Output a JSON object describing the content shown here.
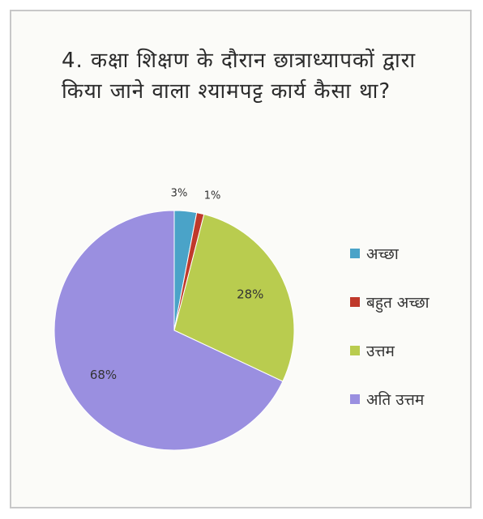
{
  "chart_data": {
    "type": "pie",
    "title": "4. कक्षा शिक्षण के दौरान छात्राध्यापकों द्वारा किया जाने वाला श्यामपट्ट कार्य कैसा था?",
    "slices": [
      {
        "label": "अच्छा",
        "value": 3,
        "percent_label": "3%",
        "color": "#4aa3c8"
      },
      {
        "label": "बहुत अच्छा",
        "value": 1,
        "percent_label": "1%",
        "color": "#c0392b"
      },
      {
        "label": "उत्तम",
        "value": 28,
        "percent_label": "28%",
        "color": "#b9cc4f"
      },
      {
        "label": "अति उत्तम",
        "value": 68,
        "percent_label": "68%",
        "color": "#9a8fe0"
      }
    ],
    "legend_position": "right"
  }
}
